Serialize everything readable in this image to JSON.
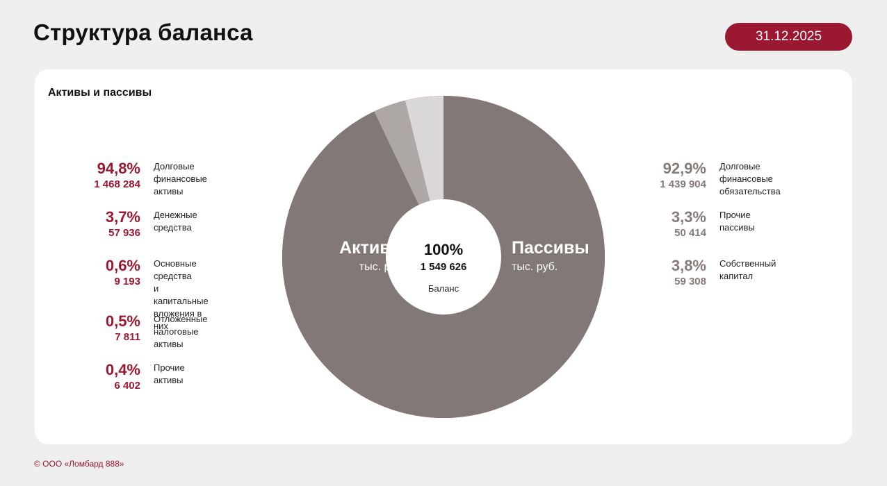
{
  "header": {
    "title": "Структура баланса",
    "date": "31.12.2025"
  },
  "card_title": "Активы и пассивы",
  "center": {
    "pct": "100%",
    "value": "1 549 626",
    "label": "Баланс"
  },
  "assets_label": {
    "name": "Активы",
    "unit": "тыс. руб."
  },
  "liabilities_label": {
    "name": "Пассивы",
    "unit": "тыс. руб."
  },
  "assets": [
    {
      "pct": "94,8%",
      "value": "1 468 284",
      "label": "Долговые\nфинансовые\nактивы"
    },
    {
      "pct": "3,7%",
      "value": "57 936",
      "label": "Денежные\nсредства"
    },
    {
      "pct": "0,6%",
      "value": "9 193",
      "label": "Основные средства\nи капитальные\nвложения в них"
    },
    {
      "pct": "0,5%",
      "value": "7 811",
      "label": "Отложенные\nналоговые\nактивы"
    },
    {
      "pct": "0,4%",
      "value": "6 402",
      "label": "Прочие\nактивы"
    }
  ],
  "liabilities": [
    {
      "pct": "92,9%",
      "value": "1 439 904",
      "label": "Долговые\nфинансовые\nобязательства"
    },
    {
      "pct": "3,3%",
      "value": "50 414",
      "label": "Прочие\nпассивы"
    },
    {
      "pct": "3,8%",
      "value": "59 308",
      "label": "Собственный\nкапитал"
    }
  ],
  "chart_data": {
    "type": "pie",
    "total": 1549626,
    "series": [
      {
        "name": "Активы",
        "categories": [
          "Долговые финансовые активы",
          "Денежные средства",
          "Основные средства и капитальные вложения в них",
          "Отложенные налоговые активы",
          "Прочие активы"
        ],
        "values": [
          1468284,
          57936,
          9193,
          7811,
          6402
        ],
        "colors": [
          "#9a1830",
          "#b14e61",
          "#c9a3ab",
          "#d97d91",
          "#e8b9c3"
        ]
      },
      {
        "name": "Пассивы",
        "categories": [
          "Долговые финансовые обязательства",
          "Прочие пассивы",
          "Собственный капитал"
        ],
        "values": [
          1439904,
          50414,
          59308
        ],
        "colors": [
          "#827876",
          "#ada7a6",
          "#d9d7d7"
        ]
      }
    ]
  },
  "colors": {
    "accent": "#9a1830",
    "liabilities": "#857b79",
    "background": "#efefef"
  },
  "footer": "© ООО «Ломбард 888»"
}
